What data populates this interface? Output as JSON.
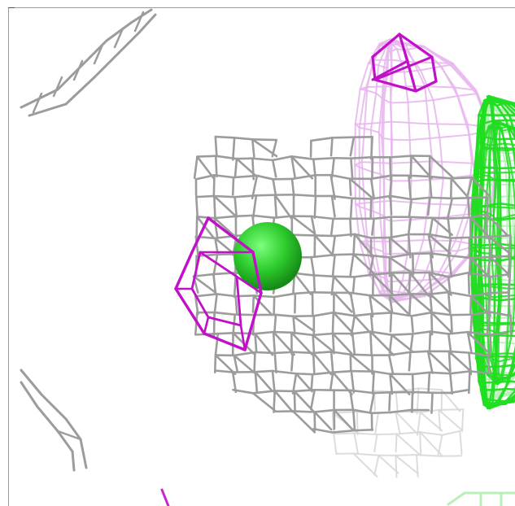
{
  "scene": {
    "background": "#ffffff",
    "colors": {
      "mesh_gray": "#9c9c9c",
      "mesh_gray_light": "#d8d8d8",
      "mesh_magenta": "#c010c8",
      "mesh_magenta_light": "#e8b8ee",
      "mesh_green": "#22dd22",
      "mesh_green_light": "#b8f0b8",
      "atom_green": "#2ecc2e"
    },
    "objects": [
      "gray-electron-density-mesh",
      "magenta-density-mesh",
      "green-density-mesh",
      "green-atom-sphere"
    ]
  }
}
